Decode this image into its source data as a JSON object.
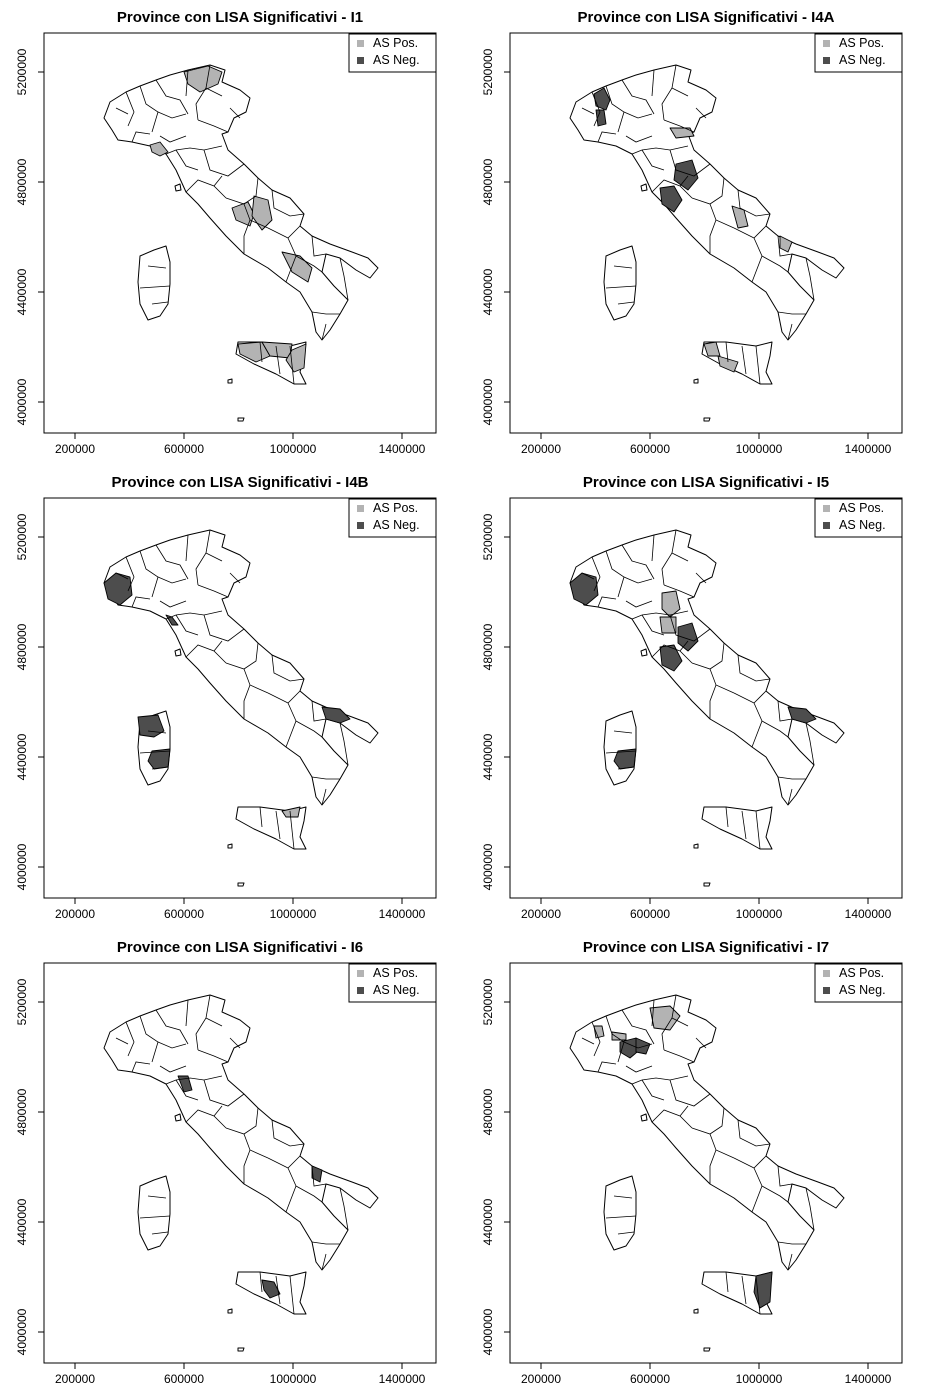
{
  "colors": {
    "pos": "#b3b3b3",
    "neg": "#4d4d4d",
    "line": "#000000",
    "bg": "#ffffff"
  },
  "axes": {
    "x_ticks": [
      "200000",
      "600000",
      "1000000",
      "1400000"
    ],
    "y_ticks": [
      "4000000",
      "4400000",
      "4800000",
      "5200000"
    ],
    "xlim": [
      40000,
      1500000
    ],
    "ylim": [
      3890000,
      5300000
    ]
  },
  "legend": {
    "pos_label": "AS Pos.",
    "neg_label": "AS Neg.",
    "placement": "top-right"
  },
  "panels": [
    {
      "title": "Province con LISA Significativi - I1",
      "significant": [
        {
          "region": "Alto Adige (north)",
          "cluster": "pos"
        },
        {
          "region": "Liguria west",
          "cluster": "pos"
        },
        {
          "region": "Umbria / Marche",
          "cluster": "pos"
        },
        {
          "region": "Campania / Basilicata",
          "cluster": "pos"
        },
        {
          "region": "Sicilia north",
          "cluster": "pos"
        },
        {
          "region": "Sicilia east",
          "cluster": "pos"
        }
      ]
    },
    {
      "title": "Province con LISA Significativi - I4A",
      "significant": [
        {
          "region": "Piemonte north",
          "cluster": "neg"
        },
        {
          "region": "Piemonte north-west",
          "cluster": "neg"
        },
        {
          "region": "Toscana south",
          "cluster": "neg"
        },
        {
          "region": "Toscana coast",
          "cluster": "neg"
        },
        {
          "region": "Lombardia east",
          "cluster": "pos"
        },
        {
          "region": "Abruzzo",
          "cluster": "pos"
        },
        {
          "region": "Puglia",
          "cluster": "pos"
        },
        {
          "region": "Sicilia west",
          "cluster": "pos"
        },
        {
          "region": "Sicilia south",
          "cluster": "pos"
        }
      ]
    },
    {
      "title": "Province con LISA Significativi - I4B",
      "significant": [
        {
          "region": "Piemonte west",
          "cluster": "neg"
        },
        {
          "region": "Liguria east",
          "cluster": "neg"
        },
        {
          "region": "Sardegna north-west",
          "cluster": "neg"
        },
        {
          "region": "Sardegna south",
          "cluster": "neg"
        },
        {
          "region": "Puglia north",
          "cluster": "neg"
        },
        {
          "region": "Calabria north",
          "cluster": "pos"
        }
      ]
    },
    {
      "title": "Province con LISA Significativi - I5",
      "significant": [
        {
          "region": "Piemonte west",
          "cluster": "neg"
        },
        {
          "region": "Toscana",
          "cluster": "neg"
        },
        {
          "region": "Umbria",
          "cluster": "neg"
        },
        {
          "region": "Puglia north",
          "cluster": "neg"
        },
        {
          "region": "Sardegna south",
          "cluster": "neg"
        },
        {
          "region": "Emilia-Romagna",
          "cluster": "pos"
        },
        {
          "region": "Toscana north",
          "cluster": "pos"
        }
      ]
    },
    {
      "title": "Province con LISA Significativi - I6",
      "significant": [
        {
          "region": "Liguria east",
          "cluster": "neg"
        },
        {
          "region": "Puglia north",
          "cluster": "neg"
        },
        {
          "region": "Sicilia center",
          "cluster": "neg"
        }
      ]
    },
    {
      "title": "Province con LISA Significativi - I7",
      "significant": [
        {
          "region": "Trentino",
          "cluster": "pos"
        },
        {
          "region": "Lombardia west",
          "cluster": "pos"
        },
        {
          "region": "Lombardia center",
          "cluster": "pos"
        },
        {
          "region": "Lombardia south",
          "cluster": "neg"
        },
        {
          "region": "Emilia west",
          "cluster": "neg"
        },
        {
          "region": "Sicilia east",
          "cluster": "neg"
        }
      ]
    }
  ]
}
